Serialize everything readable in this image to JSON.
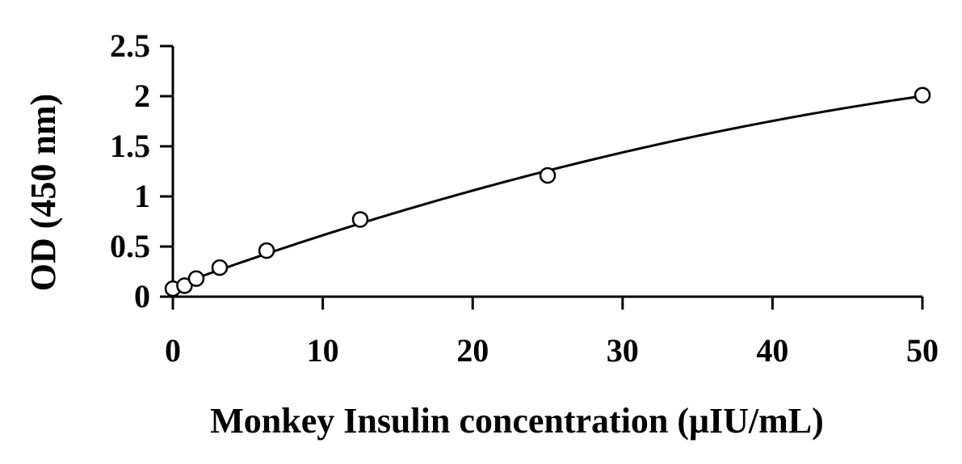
{
  "chart_data": {
    "type": "scatter",
    "title": "",
    "xlabel": "Monkey Insulin concentration (μIU/mL)",
    "ylabel": "OD (450 nm)",
    "xlim": [
      0,
      50
    ],
    "ylim": [
      0,
      2.5
    ],
    "x_ticks": [
      "0",
      "10",
      "20",
      "30",
      "40",
      "50"
    ],
    "y_ticks": [
      "0",
      "0.5",
      "1",
      "1.5",
      "2",
      "2.5"
    ],
    "grid": false,
    "legend": "none",
    "series": [
      {
        "marker": "open-circle",
        "x": [
          0,
          0.78,
          1.56,
          3.125,
          6.25,
          12.5,
          25,
          50
        ],
        "y": [
          0.08,
          0.11,
          0.18,
          0.29,
          0.46,
          0.77,
          1.21,
          2.01
        ]
      }
    ],
    "fit_curve": true,
    "colors": {
      "axis": "#000000",
      "marker": "#000000",
      "curve": "#000000"
    }
  }
}
